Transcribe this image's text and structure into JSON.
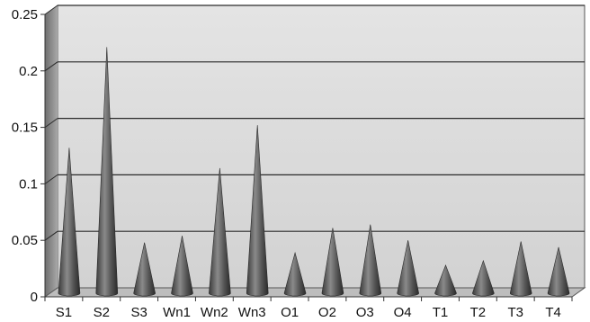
{
  "chart_data": {
    "type": "bar",
    "bar_shape": "cone",
    "categories": [
      "S1",
      "S2",
      "S3",
      "Wn1",
      "Wn2",
      "Wn3",
      "O1",
      "O2",
      "O3",
      "O4",
      "T1",
      "T2",
      "T3",
      "T4"
    ],
    "values": [
      0.128,
      0.217,
      0.044,
      0.05,
      0.11,
      0.148,
      0.035,
      0.057,
      0.06,
      0.046,
      0.024,
      0.028,
      0.045,
      0.04
    ],
    "title": "",
    "xlabel": "",
    "ylabel": "",
    "ylim": [
      0,
      0.25
    ],
    "yticks": [
      0,
      0.05,
      0.1,
      0.15,
      0.2,
      0.25
    ],
    "ytick_labels": [
      "0",
      "0.05",
      "0.1",
      "0.15",
      "0.2",
      "0.25"
    ],
    "grid": true,
    "legend": "none",
    "colors": {
      "plot_background": "#d9d9d9",
      "gridline": "#2a2a2a",
      "bar": "#555555",
      "side_wall": "#8c8c8c"
    }
  }
}
